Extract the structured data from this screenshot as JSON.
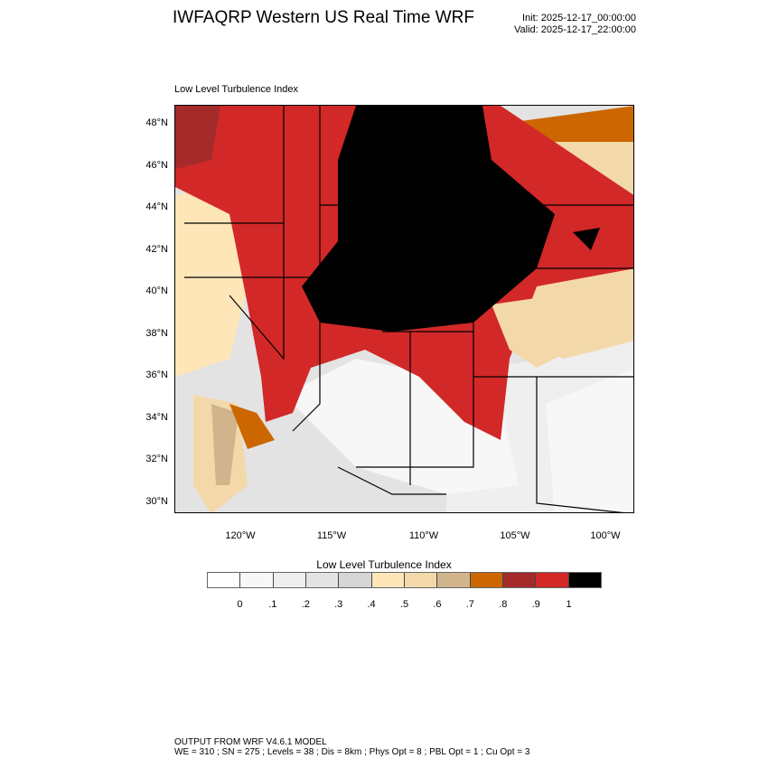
{
  "header": {
    "title": "IWFAQRP Western US Real Time WRF",
    "init": "Init: 2025-12-17_00:00:00",
    "valid": "Valid: 2025-12-17_22:00:00"
  },
  "map": {
    "subtitle": "Low Level Turbulence Index",
    "lat_ticks": [
      "48°N",
      "46°N",
      "44°N",
      "42°N",
      "40°N",
      "38°N",
      "36°N",
      "34°N",
      "32°N",
      "30°N"
    ],
    "lon_ticks": [
      "120°W",
      "115°W",
      "110°W",
      "105°W",
      "100°W"
    ]
  },
  "colorbar": {
    "title": "Low Level Turbulence Index",
    "colors": [
      "#ffffff",
      "#f7f7f7",
      "#efefef",
      "#e3e3e3",
      "#d6d6d6",
      "#fee6b8",
      "#f3d9aa",
      "#d2b48c",
      "#cc6600",
      "#a52a2a",
      "#d22828",
      "#000000"
    ],
    "labels": [
      "0",
      ".1",
      ".2",
      ".3",
      ".4",
      ".5",
      ".6",
      ".7",
      ".8",
      ".9",
      "1"
    ]
  },
  "footer": {
    "line1": "OUTPUT FROM WRF V4.6.1 MODEL",
    "line2": "WE = 310 ; SN = 275 ; Levels = 38 ; Dis = 8km ; Phys Opt = 8 ; PBL Opt = 1 ; Cu Opt = 3"
  }
}
